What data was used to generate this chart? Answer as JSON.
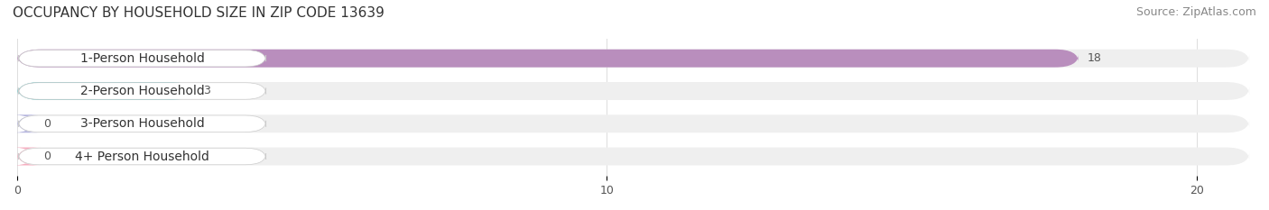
{
  "title": "OCCUPANCY BY HOUSEHOLD SIZE IN ZIP CODE 13639",
  "source": "Source: ZipAtlas.com",
  "categories": [
    "1-Person Household",
    "2-Person Household",
    "3-Person Household",
    "4+ Person Household"
  ],
  "values": [
    18,
    3,
    0,
    0
  ],
  "bar_colors": [
    "#b07db5",
    "#5bbcbe",
    "#a8a8d8",
    "#f4a0b5"
  ],
  "label_bg_color": "#ffffff",
  "bar_bg_color": "#efefef",
  "xlim": [
    0,
    21
  ],
  "xticks": [
    0,
    10,
    20
  ],
  "title_fontsize": 11,
  "source_fontsize": 9,
  "label_fontsize": 10,
  "value_fontsize": 9,
  "bar_height": 0.55,
  "fig_width": 14.06,
  "fig_height": 2.33,
  "background_color": "#ffffff"
}
